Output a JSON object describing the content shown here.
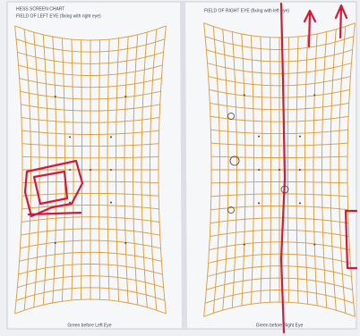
{
  "header": {
    "title": "HESS SCREEN CHART"
  },
  "left_field": {
    "title": "FIELD OF LEFT EYE (fixing with right eye)",
    "caption": "Green before Left Eye"
  },
  "right_field": {
    "title": "FIELD OF RIGHT EYE (fixing with left eye)",
    "caption": "Green before Right Eye"
  }
}
